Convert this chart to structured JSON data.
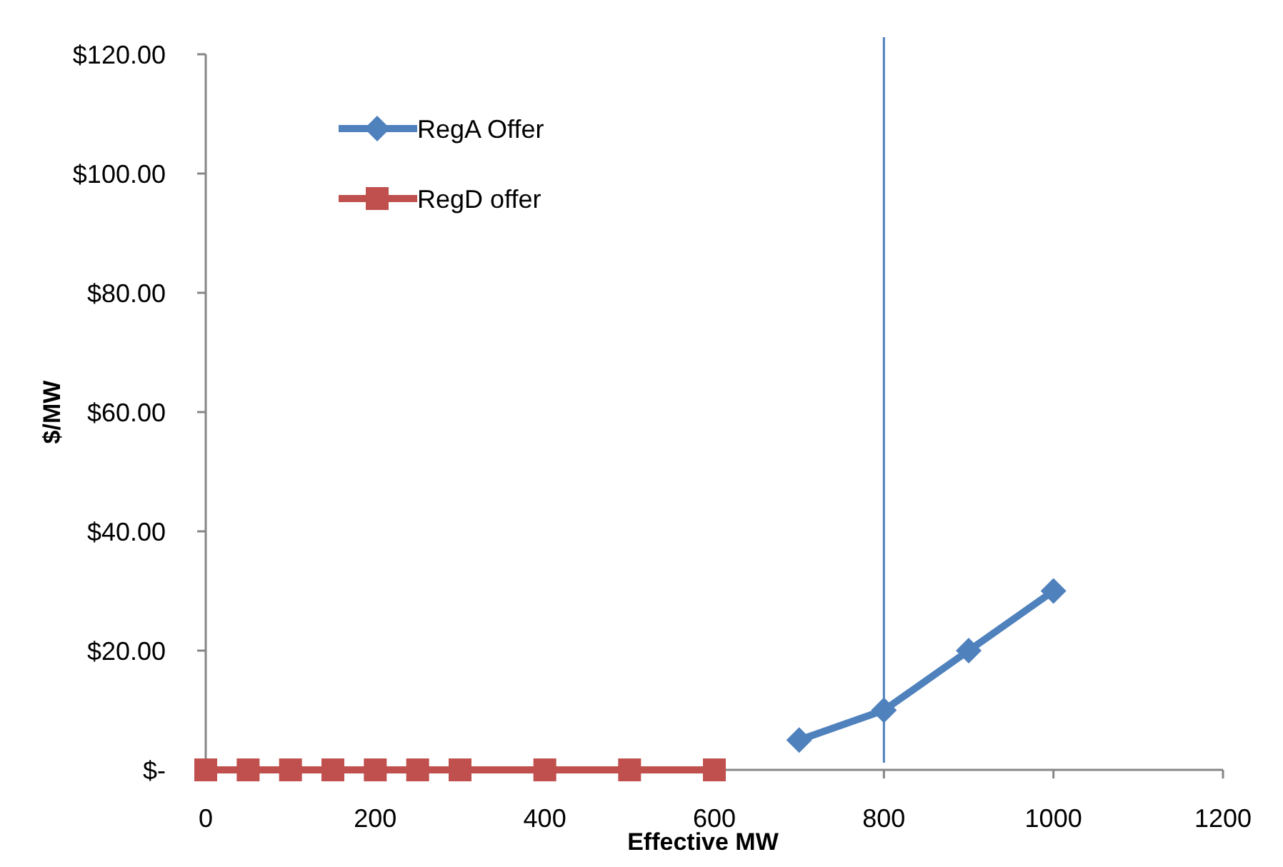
{
  "chart_data": {
    "type": "line",
    "xlabel": "Effective MW",
    "ylabel": "$/MW",
    "xlim": [
      0,
      1200
    ],
    "xticks": [
      0,
      200,
      400,
      600,
      800,
      1000,
      1200
    ],
    "ylim": [
      0,
      120
    ],
    "yticks": [
      {
        "value": 0,
        "label": "$-"
      },
      {
        "value": 20,
        "label": "$20.00"
      },
      {
        "value": 40,
        "label": "$40.00"
      },
      {
        "value": 60,
        "label": "$60.00"
      },
      {
        "value": 80,
        "label": "$80.00"
      },
      {
        "value": 100,
        "label": "$100.00"
      },
      {
        "value": 120,
        "label": "$120.00"
      }
    ],
    "series": [
      {
        "name": "RegA Offer",
        "color": "#4f81bd",
        "marker": "diamond",
        "x": [
          700,
          800,
          900,
          1000
        ],
        "values": [
          5,
          10,
          20,
          30
        ]
      },
      {
        "name": "RegD offer",
        "color": "#c0504d",
        "marker": "square",
        "x": [
          0,
          50,
          100,
          150,
          200,
          250,
          300,
          400,
          500,
          600
        ],
        "values": [
          0,
          0,
          0,
          0,
          0,
          0,
          0,
          0,
          0,
          0
        ]
      }
    ],
    "ref_lines": [
      {
        "axis": "x",
        "value": 800,
        "color": "#4f81bd"
      }
    ],
    "legend": "top left",
    "grid": false
  }
}
